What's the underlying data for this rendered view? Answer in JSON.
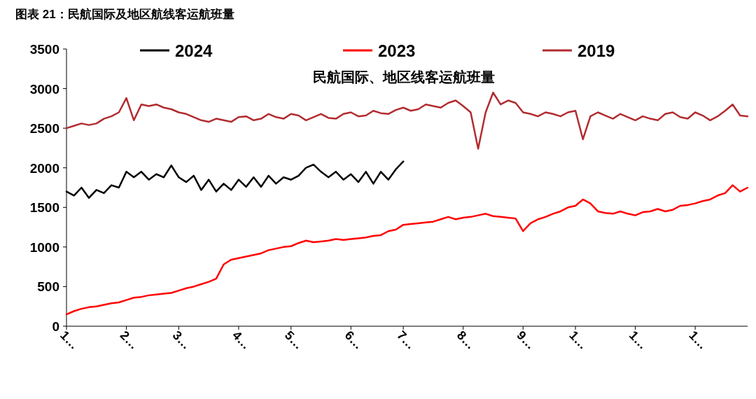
{
  "chart_data": {
    "type": "line",
    "title": "图表 21：民航国际及地区航线客运航班量",
    "annotations": [
      "民航国际、地区线客运航班量"
    ],
    "categories": [
      "1…",
      null,
      null,
      null,
      null,
      null,
      null,
      null,
      "2…",
      null,
      null,
      null,
      null,
      null,
      null,
      "3…",
      null,
      null,
      null,
      null,
      null,
      null,
      null,
      "4…",
      null,
      null,
      null,
      null,
      null,
      null,
      "5…",
      null,
      null,
      null,
      null,
      null,
      null,
      null,
      "6…",
      null,
      null,
      null,
      null,
      null,
      null,
      "7…",
      null,
      null,
      null,
      null,
      null,
      null,
      null,
      "8…",
      null,
      null,
      null,
      null,
      null,
      null,
      null,
      "9…",
      null,
      null,
      null,
      null,
      null,
      null,
      "1…",
      null,
      null,
      null,
      null,
      null,
      null,
      null,
      "1…",
      null,
      null,
      null,
      null,
      null,
      null,
      null,
      "1…",
      null,
      null,
      null,
      null,
      null,
      null,
      null
    ],
    "ylim": [
      0,
      3500
    ],
    "yticks": [
      0,
      500,
      1000,
      1500,
      2000,
      2500,
      3000,
      3500
    ],
    "grid": false,
    "legend": "top",
    "marker": "none",
    "line_style": "solid",
    "series": [
      {
        "name": "2024",
        "color": "#000000",
        "values": [
          1700,
          1650,
          1750,
          1620,
          1720,
          1680,
          1780,
          1750,
          1950,
          1880,
          1950,
          1850,
          1920,
          1880,
          2030,
          1880,
          1820,
          1900,
          1720,
          1850,
          1700,
          1800,
          1720,
          1850,
          1760,
          1880,
          1760,
          1900,
          1800,
          1880,
          1850,
          1900,
          2000,
          2040,
          1950,
          1880,
          1950,
          1850,
          1920,
          1820,
          1950,
          1800,
          1950,
          1850,
          1980,
          2080,
          null,
          null,
          null,
          null,
          null,
          null,
          null,
          null,
          null,
          null,
          null,
          null,
          null,
          null,
          null,
          null,
          null,
          null,
          null,
          null,
          null,
          null,
          null,
          null,
          null,
          null,
          null,
          null,
          null,
          null,
          null,
          null,
          null,
          null,
          null,
          null,
          null,
          null,
          null,
          null,
          null,
          null,
          null,
          null,
          null,
          null
        ]
      },
      {
        "name": "2023",
        "color": "#ff0000",
        "values": [
          150,
          190,
          220,
          240,
          250,
          270,
          290,
          300,
          330,
          360,
          370,
          390,
          400,
          410,
          420,
          450,
          480,
          500,
          530,
          560,
          600,
          780,
          840,
          860,
          880,
          900,
          920,
          960,
          980,
          1000,
          1010,
          1050,
          1080,
          1060,
          1070,
          1080,
          1100,
          1090,
          1100,
          1110,
          1120,
          1140,
          1150,
          1200,
          1220,
          1280,
          1290,
          1300,
          1310,
          1320,
          1350,
          1380,
          1350,
          1370,
          1380,
          1400,
          1420,
          1390,
          1380,
          1370,
          1360,
          1200,
          1300,
          1350,
          1380,
          1420,
          1450,
          1500,
          1520,
          1600,
          1550,
          1450,
          1430,
          1420,
          1450,
          1420,
          1400,
          1440,
          1450,
          1480,
          1450,
          1470,
          1520,
          1530,
          1550,
          1580,
          1600,
          1650,
          1680,
          1780,
          1700,
          1750
        ]
      },
      {
        "name": "2019",
        "color": "#b22c30",
        "values": [
          2500,
          2530,
          2560,
          2540,
          2560,
          2620,
          2650,
          2700,
          2880,
          2600,
          2800,
          2780,
          2800,
          2760,
          2740,
          2700,
          2680,
          2640,
          2600,
          2580,
          2620,
          2600,
          2580,
          2640,
          2650,
          2600,
          2620,
          2680,
          2640,
          2620,
          2680,
          2660,
          2600,
          2640,
          2680,
          2630,
          2620,
          2680,
          2700,
          2650,
          2660,
          2720,
          2690,
          2680,
          2730,
          2760,
          2720,
          2740,
          2800,
          2780,
          2760,
          2820,
          2850,
          2780,
          2700,
          2240,
          2700,
          2950,
          2800,
          2850,
          2820,
          2700,
          2680,
          2650,
          2700,
          2680,
          2650,
          2700,
          2720,
          2360,
          2650,
          2700,
          2660,
          2620,
          2680,
          2640,
          2600,
          2650,
          2620,
          2600,
          2680,
          2700,
          2640,
          2620,
          2700,
          2660,
          2600,
          2650,
          2720,
          2800,
          2660,
          2650
        ]
      }
    ]
  }
}
